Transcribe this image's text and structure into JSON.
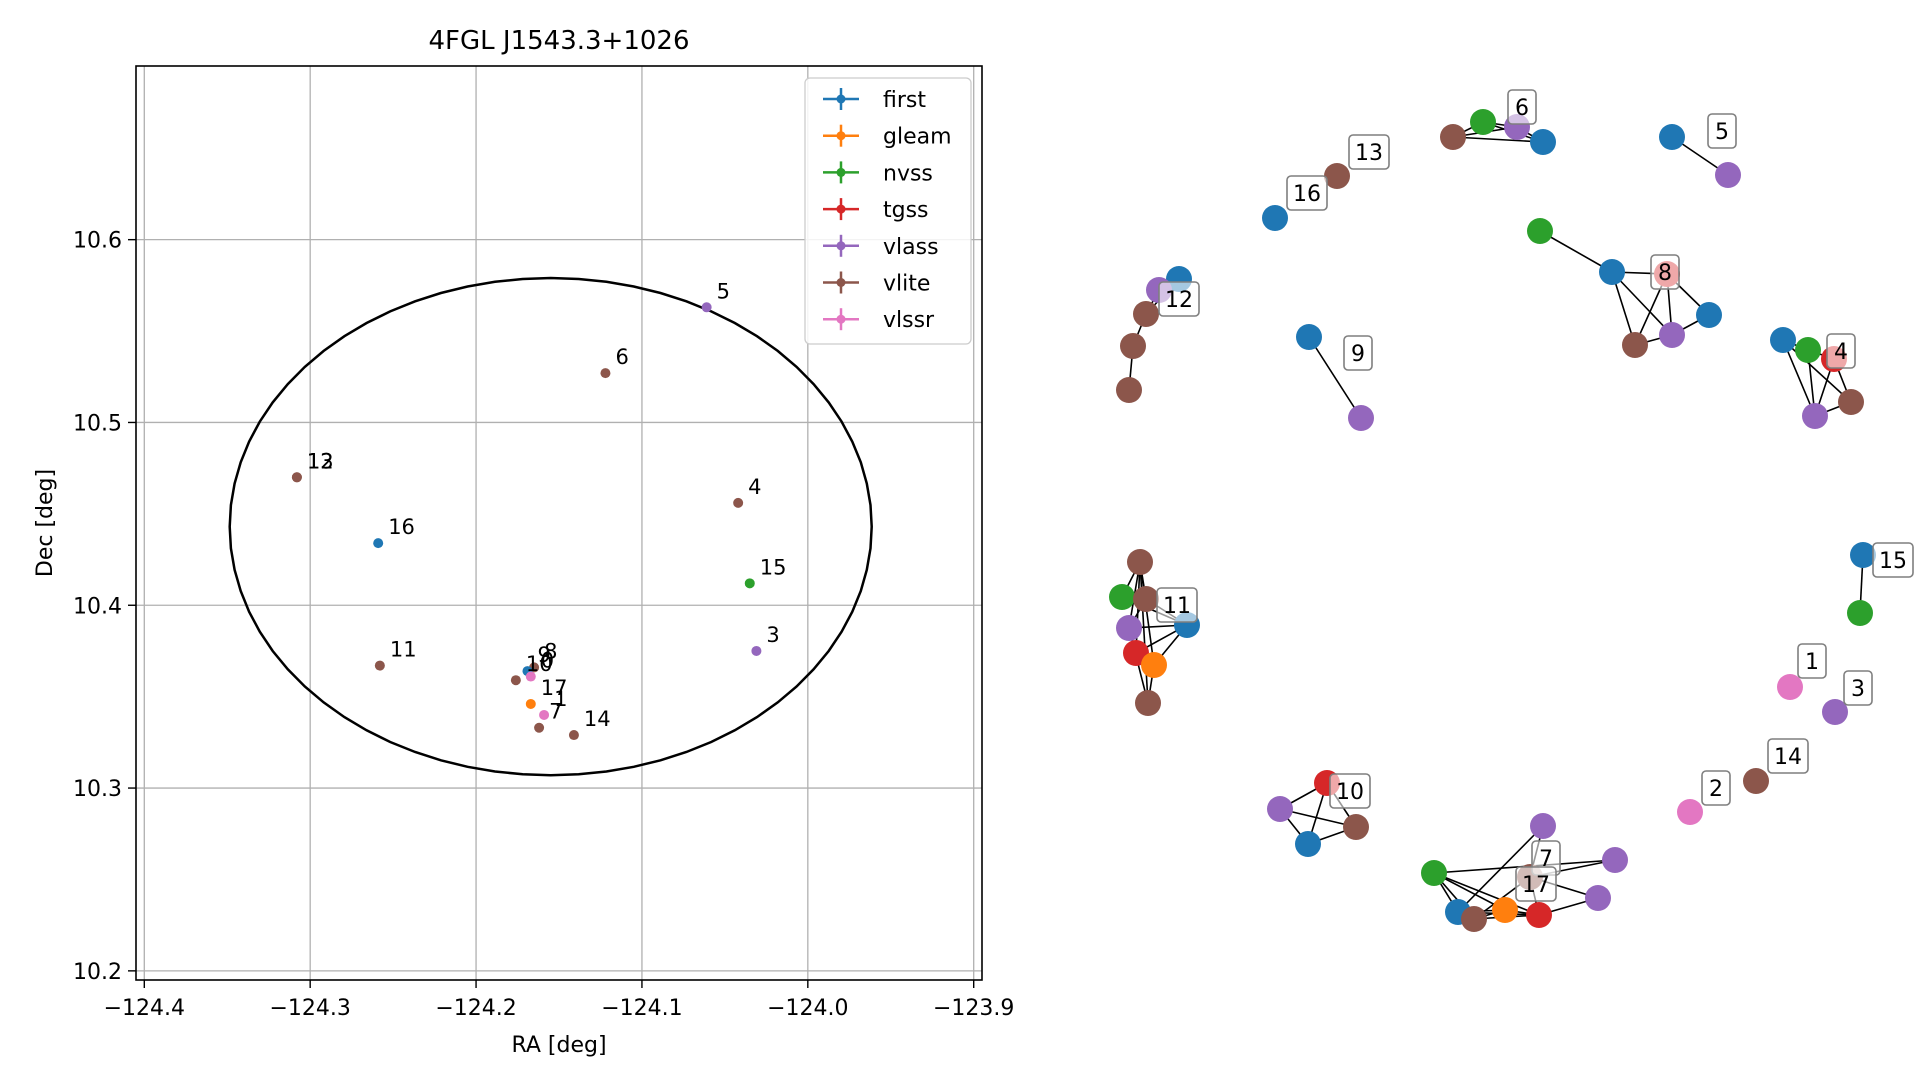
{
  "colors": {
    "first": "#1f77b4",
    "gleam": "#ff7f0e",
    "nvss": "#2ca02c",
    "tgss": "#d62728",
    "vlass": "#9467bd",
    "vlite": "#8c564b",
    "vlssr": "#e377c2",
    "grid": "#b0b0b0",
    "ellipse": "#000000"
  },
  "chart_data": [
    {
      "type": "scatter",
      "title": "4FGL J1543.3+1026",
      "xlabel": "RA [deg]",
      "ylabel": "Dec [deg]",
      "xlim": [
        -124.405,
        -123.895
      ],
      "ylim": [
        10.195,
        10.695
      ],
      "x_ticks": [
        -124.4,
        -124.3,
        -124.2,
        -124.1,
        -124.0,
        -123.9
      ],
      "x_tick_labels": [
        "−124.4",
        "−124.3",
        "−124.2",
        "−124.1",
        "−124.0",
        "−123.9"
      ],
      "y_ticks": [
        10.2,
        10.3,
        10.4,
        10.5,
        10.6
      ],
      "y_tick_labels": [
        "10.2",
        "10.3",
        "10.4",
        "10.5",
        "10.6"
      ],
      "grid": true,
      "legend_position": "top-right",
      "legend": [
        "first",
        "gleam",
        "nvss",
        "tgss",
        "vlass",
        "vlite",
        "vlssr"
      ],
      "ellipse": {
        "center": [
          -124.155,
          10.443
        ],
        "half_width": 0.1935,
        "half_height": 0.136
      },
      "points": [
        {
          "label": "5",
          "survey": "vlass",
          "x": -124.061,
          "y": 10.563
        },
        {
          "label": "6",
          "survey": "vlite",
          "x": -124.122,
          "y": 10.527
        },
        {
          "label": "12",
          "survey": "vlite",
          "x": -124.308,
          "y": 10.47
        },
        {
          "label": "13",
          "survey": "vlite",
          "x": -124.308,
          "y": 10.47
        },
        {
          "label": "4",
          "survey": "vlite",
          "x": -124.042,
          "y": 10.456
        },
        {
          "label": "16",
          "survey": "first",
          "x": -124.259,
          "y": 10.434
        },
        {
          "label": "15",
          "survey": "nvss",
          "x": -124.035,
          "y": 10.412
        },
        {
          "label": "3",
          "survey": "vlass",
          "x": -124.031,
          "y": 10.375
        },
        {
          "label": "11",
          "survey": "vlite",
          "x": -124.258,
          "y": 10.367
        },
        {
          "label": "8",
          "survey": "vlite",
          "x": -124.165,
          "y": 10.366
        },
        {
          "label": "9",
          "survey": "first",
          "x": -124.169,
          "y": 10.364
        },
        {
          "label": "10",
          "survey": "vlite",
          "x": -124.176,
          "y": 10.359
        },
        {
          "label": "0",
          "survey": "vlssr",
          "x": -124.167,
          "y": 10.361
        },
        {
          "label": "17",
          "survey": "gleam",
          "x": -124.167,
          "y": 10.346
        },
        {
          "label": "1",
          "survey": "vlssr",
          "x": -124.159,
          "y": 10.34
        },
        {
          "label": "7",
          "survey": "vlite",
          "x": -124.162,
          "y": 10.333
        },
        {
          "label": "14",
          "survey": "vlite",
          "x": -124.141,
          "y": 10.329
        }
      ]
    },
    {
      "type": "network",
      "groups": [
        {
          "label": "6",
          "nodes": [
            "vlite",
            "nvss",
            "vlass",
            "first"
          ],
          "edges": [
            [
              0,
              1
            ],
            [
              0,
              2
            ],
            [
              0,
              3
            ],
            [
              1,
              2
            ],
            [
              1,
              3
            ],
            [
              2,
              3
            ]
          ]
        },
        {
          "label": "13",
          "nodes": [
            "vlite"
          ],
          "edges": []
        },
        {
          "label": "16",
          "nodes": [
            "first"
          ],
          "edges": []
        },
        {
          "label": "5",
          "nodes": [
            "first",
            "vlass"
          ],
          "edges": [
            [
              0,
              1
            ]
          ]
        },
        {
          "label": "12",
          "nodes": [
            "first",
            "vlass",
            "vlite",
            "vlite",
            "vlite"
          ],
          "edges": [
            [
              0,
              1
            ],
            [
              1,
              2
            ],
            [
              2,
              3
            ],
            [
              3,
              4
            ],
            [
              0,
              2
            ]
          ]
        },
        {
          "label": "9",
          "nodes": [
            "first",
            "vlass"
          ],
          "edges": [
            [
              0,
              1
            ]
          ]
        },
        {
          "label": "8",
          "nodes": [
            "nvss",
            "first",
            "tgss",
            "first",
            "vlite",
            "vlass"
          ],
          "edges": [
            [
              0,
              1
            ],
            [
              1,
              2
            ],
            [
              1,
              4
            ],
            [
              1,
              5
            ],
            [
              2,
              3
            ],
            [
              2,
              4
            ],
            [
              2,
              5
            ],
            [
              3,
              5
            ],
            [
              4,
              5
            ]
          ]
        },
        {
          "label": "4",
          "nodes": [
            "first",
            "nvss",
            "tgss",
            "vlite",
            "vlass"
          ],
          "edges": [
            [
              0,
              1
            ],
            [
              0,
              4
            ],
            [
              0,
              3
            ],
            [
              1,
              2
            ],
            [
              1,
              4
            ],
            [
              2,
              3
            ],
            [
              2,
              4
            ],
            [
              3,
              4
            ]
          ]
        },
        {
          "label": "11",
          "nodes": [
            "vlite",
            "nvss",
            "vlite",
            "first",
            "vlass",
            "tgss",
            "gleam",
            "vlite"
          ],
          "edges": [
            [
              0,
              1
            ],
            [
              0,
              2
            ],
            [
              0,
              4
            ],
            [
              0,
              5
            ],
            [
              0,
              6
            ],
            [
              0,
              7
            ],
            [
              1,
              2
            ],
            [
              1,
              3
            ],
            [
              2,
              3
            ],
            [
              2,
              4
            ],
            [
              3,
              4
            ],
            [
              3,
              5
            ],
            [
              3,
              6
            ],
            [
              4,
              5
            ],
            [
              4,
              7
            ],
            [
              5,
              6
            ],
            [
              6,
              7
            ]
          ]
        },
        {
          "label": "15",
          "nodes": [
            "first",
            "nvss"
          ],
          "edges": [
            [
              0,
              1
            ]
          ]
        },
        {
          "label": "1",
          "nodes": [
            "vlssr"
          ],
          "edges": []
        },
        {
          "label": "3",
          "nodes": [
            "vlass"
          ],
          "edges": []
        },
        {
          "label": "14",
          "nodes": [
            "vlite"
          ],
          "edges": []
        },
        {
          "label": "2",
          "nodes": [
            "vlssr"
          ],
          "edges": []
        },
        {
          "label": "10",
          "nodes": [
            "tgss",
            "vlass",
            "first",
            "vlite"
          ],
          "edges": [
            [
              0,
              1
            ],
            [
              0,
              2
            ],
            [
              0,
              3
            ],
            [
              1,
              2
            ],
            [
              1,
              3
            ],
            [
              2,
              3
            ]
          ]
        },
        {
          "label": "7",
          "nodes": [
            "vlass",
            "vlite",
            "vlass",
            "vlass"
          ],
          "edges": [
            [
              0,
              1
            ],
            [
              1,
              2
            ],
            [
              1,
              3
            ]
          ]
        },
        {
          "label": "17",
          "nodes": [
            "nvss",
            "first",
            "vlite",
            "gleam",
            "tgss"
          ],
          "edges": [
            [
              0,
              1
            ],
            [
              0,
              2
            ],
            [
              0,
              3
            ],
            [
              0,
              4
            ],
            [
              1,
              2
            ],
            [
              1,
              3
            ],
            [
              1,
              4
            ],
            [
              2,
              3
            ],
            [
              2,
              4
            ],
            [
              3,
              4
            ]
          ]
        }
      ],
      "cross_edges": [
        [
          "7",
          1,
          "17",
          4
        ],
        [
          "7",
          1,
          "17",
          2
        ],
        [
          "7",
          0,
          "17",
          1
        ],
        [
          "7",
          2,
          "17",
          0
        ],
        [
          "7",
          3,
          "17",
          4
        ]
      ]
    }
  ]
}
